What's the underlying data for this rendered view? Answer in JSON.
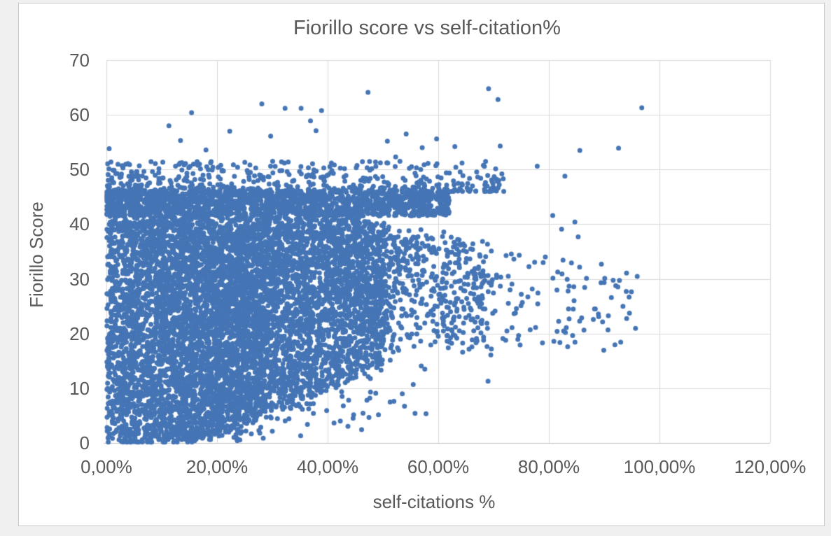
{
  "app": {
    "worksheet_background": "#f0f0f0"
  },
  "chart_frame": {
    "background": "#ffffff",
    "border_color": "#c8c8c8"
  },
  "chart_data": {
    "type": "scatter",
    "title": "Fiorillo score vs self-citation%",
    "xlabel": "self-citations %",
    "ylabel": "Fiorillo Score",
    "legend": false,
    "grid": true,
    "x_axis": {
      "min": 0,
      "max": 1.2,
      "tick_values": [
        0,
        0.2,
        0.4,
        0.6,
        0.8,
        1.0,
        1.2
      ],
      "tick_labels": [
        "0,00%",
        "20,00%",
        "40,00%",
        "60,00%",
        "80,00%",
        "100,00%",
        "120,00%"
      ],
      "number_format": "percent with comma decimal separator"
    },
    "y_axis": {
      "min": 0,
      "max": 70,
      "tick_values": [
        0,
        10,
        20,
        30,
        40,
        50,
        60,
        70
      ],
      "tick_labels": [
        "0",
        "10",
        "20",
        "30",
        "40",
        "50",
        "60",
        "70"
      ]
    },
    "style": {
      "marker_shape": "circle",
      "marker_color": "#4575b5",
      "marker_radius_px": 3.5,
      "gridline_color": "#d9d9d9",
      "axis_line_color": "#bfbfbf",
      "text_color": "#595959",
      "title_color": "#595959"
    },
    "cloud_summary": "Very dense solid cloud of points for self-citation 0%-45% spanning scores 0-46; lower envelope rises diagonally from (~13%, 0) toward (~55%, 17); density thins steadily to the right, with sparse points out to ~97%; speckled upper band at scores 41-46 and a thin fringe to ~52; isolated outliers up to score ~65.",
    "point_cloud_model": {
      "seed": 20240613,
      "lower_envelope": {
        "x0": 0.13,
        "slope": 55,
        "power": 1.35,
        "cap": 17
      },
      "upper_envelope": {
        "flat": 41.5,
        "x_knee": 0.42,
        "slope_after": -20
      },
      "edge_jitter": 1.5,
      "components": [
        {
          "name": "core-left",
          "n": 4600,
          "x": {
            "base": 0.0,
            "scale": 0.27,
            "power": 0.85
          },
          "y": {
            "mode": "envelope",
            "bias": 1.0
          }
        },
        {
          "name": "core-mid",
          "n": 2800,
          "x": {
            "base": 0.27,
            "scale": 0.23,
            "power": 1.2
          },
          "y": {
            "mode": "envelope",
            "bias": 0.9
          }
        },
        {
          "name": "tail-50-70",
          "n": 480,
          "x": {
            "base": 0.5,
            "scale": 0.2,
            "power": 1.35
          },
          "y": {
            "mode": "envelope",
            "bias": 0.85
          }
        },
        {
          "name": "tail-70-96",
          "n": 85,
          "x": {
            "base": 0.7,
            "scale": 0.26,
            "power": 1.6
          },
          "y": {
            "mode": "envelope",
            "bias": 0.85
          }
        },
        {
          "name": "upper-band",
          "n": 1600,
          "x": {
            "base": 0.0,
            "scale": 0.62,
            "power": 1.1
          },
          "y": {
            "mode": "band",
            "lo": 41.5,
            "hi": 46
          }
        },
        {
          "name": "upper-fringe",
          "n": 500,
          "x": {
            "base": 0.0,
            "scale": 0.72,
            "power": 1.2
          },
          "y": {
            "mode": "decay",
            "start": 46,
            "range": 5.5,
            "power": 2.2
          }
        },
        {
          "name": "below-envelope-stragglers",
          "n": 45,
          "x": {
            "base": 0.22,
            "scale": 0.36,
            "power": 1.0
          },
          "y": {
            "mode": "below",
            "min_frac": 0.15,
            "max_frac": 0.9
          }
        }
      ]
    },
    "outlier_points_pct_score": [
      [
        0.5,
        53.8
      ],
      [
        11.3,
        58.0
      ],
      [
        13.4,
        55.3
      ],
      [
        15.4,
        60.4
      ],
      [
        18.0,
        53.6
      ],
      [
        22.3,
        57.0
      ],
      [
        28.1,
        62.0
      ],
      [
        29.7,
        56.1
      ],
      [
        32.3,
        61.2
      ],
      [
        35.2,
        61.2
      ],
      [
        36.9,
        58.9
      ],
      [
        37.9,
        57.1
      ],
      [
        38.9,
        60.8
      ],
      [
        47.3,
        64.1
      ],
      [
        50.8,
        55.2
      ],
      [
        52.3,
        52.3
      ],
      [
        54.2,
        56.5
      ],
      [
        57.1,
        54.0
      ],
      [
        59.7,
        55.6
      ],
      [
        63.0,
        54.2
      ],
      [
        64.3,
        51.2
      ],
      [
        69.1,
        64.8
      ],
      [
        70.8,
        62.8
      ],
      [
        71.2,
        54.3
      ],
      [
        71.5,
        49.2
      ],
      [
        77.9,
        50.6
      ],
      [
        82.9,
        48.8
      ],
      [
        85.6,
        53.5
      ],
      [
        92.6,
        53.9
      ],
      [
        96.8,
        61.3
      ]
    ],
    "right_tail_points_pct_score": [
      [
        75.2,
        25.7
      ],
      [
        74.8,
        17.9
      ],
      [
        77.6,
        21.1
      ],
      [
        80.7,
        41.6
      ],
      [
        82.3,
        39.1
      ],
      [
        83.4,
        17.6
      ],
      [
        84.7,
        40.4
      ],
      [
        85.3,
        37.7
      ],
      [
        86.8,
        30.1
      ],
      [
        88.4,
        24.5
      ],
      [
        89.0,
        23.1
      ],
      [
        89.5,
        32.7
      ],
      [
        90.1,
        30.1
      ],
      [
        91.3,
        26.6
      ],
      [
        93.4,
        25.0
      ]
    ],
    "low_outlier_points_pct_score": [
      [
        23.8,
        2.5
      ],
      [
        28.9,
        4.7
      ],
      [
        37.8,
        8.7
      ],
      [
        43.8,
        7.8
      ],
      [
        47.1,
        7.8
      ],
      [
        48.7,
        9.1
      ],
      [
        51.3,
        7.5
      ],
      [
        53.5,
        9.0
      ],
      [
        55.8,
        5.4
      ],
      [
        69.0,
        11.3
      ]
    ]
  }
}
